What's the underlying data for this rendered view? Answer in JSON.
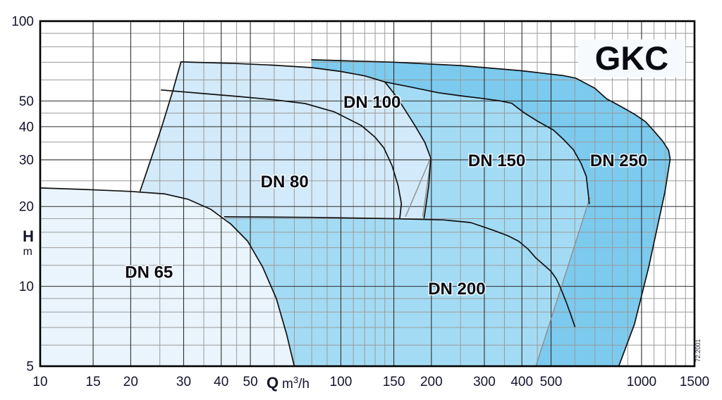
{
  "title": {
    "text": "GKC",
    "background": "#F7FAFC",
    "color": "#0a0a12"
  },
  "stamp": {
    "text": "72.2001",
    "color": "#2a2a3a"
  },
  "chart_data": {
    "type": "area",
    "scale": "log-log",
    "grid": {
      "minor_color": "#9b9b9b",
      "major_color": "#2e2e2e",
      "border_color": "#000000"
    },
    "x_axis": {
      "label": "Q",
      "unit_base": "m",
      "unit_sup": "3",
      "unit_rest": "/h",
      "min": 10,
      "max": 1500,
      "major_ticks": [
        10,
        15,
        20,
        30,
        40,
        50,
        100,
        150,
        200,
        300,
        400,
        500,
        1000,
        1500
      ],
      "minor_ticks": [
        25,
        35,
        45,
        60,
        70,
        80,
        90,
        110,
        120,
        130,
        140,
        250,
        350,
        450,
        600,
        700,
        800,
        900,
        1100,
        1200,
        1300,
        1400
      ]
    },
    "y_axis": {
      "label": "H",
      "unit": "m",
      "min": 5,
      "max": 100,
      "major_ticks": [
        100,
        50,
        40,
        30,
        20,
        10,
        5
      ],
      "minor_ticks": [
        6,
        7,
        8,
        9,
        12,
        14,
        16,
        18,
        25,
        35,
        45,
        60,
        70,
        80,
        90
      ]
    },
    "regions": [
      {
        "name": "dn65-field",
        "fill": "#E9F4FC",
        "points": [
          [
            10,
            5
          ],
          [
            10,
            23.5
          ],
          [
            14,
            23.2
          ],
          [
            20,
            22.8
          ],
          [
            26,
            22.3
          ],
          [
            31,
            21.3
          ],
          [
            37,
            19.5
          ],
          [
            43,
            17.2
          ],
          [
            49,
            14.8
          ],
          [
            55,
            11.8
          ],
          [
            61,
            9
          ],
          [
            66,
            6.6
          ],
          [
            70,
            5
          ]
        ]
      },
      {
        "name": "dn80-dn100-field",
        "fill": "#D2EAF9",
        "points": [
          [
            21.5,
            22.9
          ],
          [
            23.4,
            30.4
          ],
          [
            25.4,
            40.1
          ],
          [
            27.6,
            54.5
          ],
          [
            29.4,
            70.2
          ],
          [
            45,
            69.2
          ],
          [
            60,
            68.2
          ],
          [
            80,
            66.8
          ],
          [
            100,
            64.6
          ],
          [
            120,
            62.2
          ],
          [
            140,
            59
          ],
          [
            152,
            52.5
          ],
          [
            163,
            46.5
          ],
          [
            176,
            40.5
          ],
          [
            190,
            35
          ],
          [
            199,
            30.5
          ],
          [
            196,
            24
          ],
          [
            191,
            19.5
          ],
          [
            189,
            18.1
          ],
          [
            41,
            18.3
          ],
          [
            37,
            19.5
          ],
          [
            31,
            21.3
          ],
          [
            26,
            22.3
          ]
        ]
      },
      {
        "name": "dn150-dn200-field",
        "fill": "#A3DBF4",
        "points": [
          [
            140,
            59
          ],
          [
            170,
            56.5
          ],
          [
            211,
            53.7
          ],
          [
            250,
            52.3
          ],
          [
            296,
            51.1
          ],
          [
            340,
            50
          ],
          [
            370,
            49
          ],
          [
            406,
            45.2
          ],
          [
            450,
            42
          ],
          [
            510,
            38.8
          ],
          [
            550,
            35.8
          ],
          [
            594,
            32.7
          ],
          [
            630,
            29
          ],
          [
            655,
            26
          ],
          [
            666,
            22
          ],
          [
            670,
            20.5
          ],
          [
            545,
            10.2
          ],
          [
            445,
            5
          ],
          [
            70,
            5
          ],
          [
            66,
            6.6
          ],
          [
            61,
            9
          ],
          [
            55,
            11.8
          ],
          [
            49,
            14.8
          ],
          [
            43,
            17.2
          ],
          [
            41,
            18.3
          ],
          [
            150,
            18
          ],
          [
            189,
            18.1
          ],
          [
            191,
            19.5
          ],
          [
            196,
            24
          ],
          [
            199,
            30.5
          ],
          [
            190,
            35
          ],
          [
            176,
            40.5
          ],
          [
            163,
            46.5
          ],
          [
            152,
            52.5
          ]
        ]
      },
      {
        "name": "dn250-field",
        "fill": "#7CCAEE",
        "points": [
          [
            80,
            71.5
          ],
          [
            150,
            70
          ],
          [
            250,
            68
          ],
          [
            400,
            65
          ],
          [
            550,
            62.3
          ],
          [
            604,
            61
          ],
          [
            700,
            55.8
          ],
          [
            764,
            51
          ],
          [
            850,
            47.8
          ],
          [
            947,
            44.6
          ],
          [
            1030,
            41.8
          ],
          [
            1096,
            38.7
          ],
          [
            1175,
            35.3
          ],
          [
            1230,
            32.6
          ],
          [
            1245,
            30.2
          ],
          [
            1195,
            22.6
          ],
          [
            1056,
            11.8
          ],
          [
            947,
            7.2
          ],
          [
            840,
            5
          ],
          [
            445,
            5
          ],
          [
            545,
            10.2
          ],
          [
            674,
            21.7
          ],
          [
            666,
            22
          ],
          [
            655,
            26
          ],
          [
            630,
            29
          ],
          [
            594,
            32.7
          ],
          [
            550,
            35.8
          ],
          [
            510,
            38.8
          ],
          [
            450,
            42
          ],
          [
            406,
            45.2
          ],
          [
            370,
            49
          ],
          [
            340,
            50
          ],
          [
            296,
            51.1
          ],
          [
            250,
            52.3
          ],
          [
            211,
            53.7
          ],
          [
            170,
            56.5
          ],
          [
            140,
            59
          ],
          [
            120,
            62.2
          ],
          [
            100,
            64.6
          ],
          [
            80,
            66.8
          ]
        ]
      }
    ],
    "outlines": [
      {
        "name": "dn65-boundary",
        "points": [
          [
            10,
            23.5
          ],
          [
            14,
            23.2
          ],
          [
            20,
            22.8
          ],
          [
            26,
            22.3
          ],
          [
            31,
            21.3
          ],
          [
            37,
            19.5
          ],
          [
            43,
            17.2
          ],
          [
            49,
            14.8
          ],
          [
            55,
            11.8
          ],
          [
            61,
            9
          ],
          [
            66,
            6.6
          ],
          [
            70,
            5
          ]
        ]
      },
      {
        "name": "min-flow-steep-boundary",
        "points": [
          [
            21.5,
            22.9
          ],
          [
            23.4,
            30.4
          ],
          [
            25.4,
            40.1
          ],
          [
            27.6,
            54.5
          ],
          [
            29.4,
            70.2
          ]
        ]
      },
      {
        "name": "dn100-boundary",
        "points": [
          [
            29.4,
            70.2
          ],
          [
            45,
            69.2
          ],
          [
            60,
            68.2
          ],
          [
            80,
            66.8
          ],
          [
            100,
            64.6
          ],
          [
            120,
            62.2
          ],
          [
            140,
            59
          ],
          [
            152,
            52.5
          ],
          [
            163,
            46.5
          ],
          [
            176,
            40.5
          ],
          [
            190,
            35
          ],
          [
            199,
            30.5
          ],
          [
            196,
            24
          ],
          [
            191,
            19.5
          ],
          [
            189,
            18.1
          ]
        ]
      },
      {
        "name": "dn80-boundary",
        "points": [
          [
            25.3,
            55
          ],
          [
            35,
            53.3
          ],
          [
            45.6,
            52
          ],
          [
            60,
            50.5
          ],
          [
            76,
            48.9
          ],
          [
            95,
            45.5
          ],
          [
            117,
            40.4
          ],
          [
            130,
            36.5
          ],
          [
            139,
            33.3
          ],
          [
            148,
            28.5
          ],
          [
            155,
            24
          ],
          [
            159,
            20.5
          ],
          [
            157,
            18.1
          ]
        ]
      },
      {
        "name": "dn150-boundary",
        "points": [
          [
            140,
            59
          ],
          [
            170,
            56.5
          ],
          [
            211,
            53.7
          ],
          [
            250,
            52.3
          ],
          [
            296,
            51.1
          ],
          [
            340,
            50
          ],
          [
            370,
            49
          ],
          [
            406,
            45.2
          ],
          [
            450,
            42
          ],
          [
            510,
            38.8
          ],
          [
            550,
            35.8
          ],
          [
            594,
            32.7
          ],
          [
            630,
            29
          ],
          [
            655,
            26
          ],
          [
            666,
            22
          ],
          [
            670,
            20.5
          ]
        ]
      },
      {
        "name": "dn250-boundary",
        "points": [
          [
            80,
            71.5
          ],
          [
            150,
            70
          ],
          [
            250,
            68
          ],
          [
            400,
            65
          ],
          [
            550,
            62.3
          ],
          [
            604,
            61
          ],
          [
            700,
            55.8
          ],
          [
            764,
            51
          ],
          [
            850,
            47.8
          ],
          [
            947,
            44.6
          ],
          [
            1030,
            41.8
          ],
          [
            1096,
            38.7
          ],
          [
            1175,
            35.3
          ],
          [
            1230,
            32.6
          ],
          [
            1245,
            30.2
          ],
          [
            1195,
            22.6
          ],
          [
            1056,
            11.8
          ],
          [
            947,
            7.2
          ],
          [
            840,
            5
          ]
        ]
      },
      {
        "name": "dn200-boundary",
        "points": [
          [
            41,
            18.3
          ],
          [
            80,
            18.2
          ],
          [
            150,
            18
          ],
          [
            220,
            17.8
          ],
          [
            270,
            17.4
          ],
          [
            320,
            16.3
          ],
          [
            360,
            15.5
          ],
          [
            390,
            14.8
          ],
          [
            420,
            13.8
          ],
          [
            445,
            12.8
          ],
          [
            475,
            12
          ],
          [
            500,
            11.4
          ],
          [
            520,
            10.7
          ],
          [
            535,
            10
          ],
          [
            560,
            8.8
          ],
          [
            580,
            7.9
          ],
          [
            600,
            7.05
          ]
        ]
      }
    ],
    "grey_lines": [
      {
        "name": "dn250-left-boundary",
        "points": [
          [
            445,
            5
          ],
          [
            545,
            10.2
          ],
          [
            674,
            21.7
          ]
        ]
      },
      {
        "name": "dn100-min-flow-line",
        "points": [
          [
            200,
            31
          ],
          [
            187,
            18.3
          ]
        ]
      },
      {
        "name": "dn150-left-boundary",
        "points": [
          [
            200,
            31
          ],
          [
            164,
            18.3
          ]
        ]
      }
    ],
    "labels": [
      {
        "text": "DN 65",
        "q": 23,
        "h": 11.3
      },
      {
        "text": "DN 80",
        "q": 65,
        "h": 24.8
      },
      {
        "text": "DN 100",
        "q": 127,
        "h": 49.5
      },
      {
        "text": "DN 150",
        "q": 330,
        "h": 29.8
      },
      {
        "text": "DN 200",
        "q": 243,
        "h": 9.8
      },
      {
        "text": "DN 250",
        "q": 840,
        "h": 29.8
      }
    ],
    "label_color": "#0a0a12",
    "tick_color": "#14142b",
    "outline_color": "#111111",
    "grey_line_color": "#8e8e8e"
  }
}
